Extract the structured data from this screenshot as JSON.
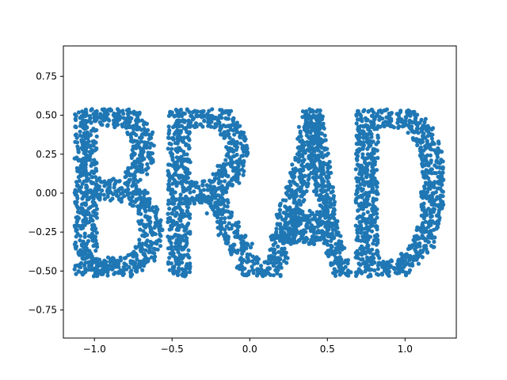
{
  "chart_data": {
    "type": "scatter",
    "title": "",
    "xlabel": "",
    "ylabel": "",
    "xlim": [
      -1.2,
      1.33
    ],
    "ylim": [
      -0.93,
      0.945
    ],
    "x_ticks": [
      {
        "value": -1.0,
        "label": "−1.0"
      },
      {
        "value": -0.5,
        "label": "−0.5"
      },
      {
        "value": 0.0,
        "label": "0.0"
      },
      {
        "value": 0.5,
        "label": "0.5"
      },
      {
        "value": 1.0,
        "label": "1.0"
      }
    ],
    "y_ticks": [
      {
        "value": -0.75,
        "label": "−0.75"
      },
      {
        "value": -0.5,
        "label": "−0.50"
      },
      {
        "value": -0.25,
        "label": "−0.25"
      },
      {
        "value": 0.0,
        "label": "0.00"
      },
      {
        "value": 0.25,
        "label": "0.25"
      },
      {
        "value": 0.5,
        "label": "0.50"
      },
      {
        "value": 0.75,
        "label": "0.75"
      }
    ],
    "grid": false,
    "legend": "none",
    "point_color": "#1f77b4",
    "series": [
      {
        "values_note_free": true,
        "points": [
          [
            -1.09,
            -0.52
          ],
          [
            -1.09,
            -0.45
          ],
          [
            -1.09,
            -0.38
          ],
          [
            -1.09,
            -0.31
          ],
          [
            -1.09,
            -0.24
          ],
          [
            -1.09,
            -0.17
          ],
          [
            -1.09,
            -0.1
          ],
          [
            -1.09,
            -0.03
          ],
          [
            -1.09,
            0.04
          ],
          [
            -1.09,
            0.11
          ],
          [
            -1.09,
            0.18
          ],
          [
            -1.09,
            0.25
          ],
          [
            -1.09,
            0.32
          ],
          [
            -1.09,
            0.39
          ],
          [
            -1.09,
            0.46
          ],
          [
            -1.09,
            0.53
          ],
          [
            -1.02,
            -0.52
          ],
          [
            -1.02,
            -0.45
          ],
          [
            -1.02,
            -0.38
          ],
          [
            -1.02,
            -0.31
          ],
          [
            -1.02,
            -0.24
          ],
          [
            -1.02,
            -0.17
          ],
          [
            -1.02,
            -0.1
          ],
          [
            -1.02,
            -0.03
          ],
          [
            -1.02,
            0.04
          ],
          [
            -1.02,
            0.11
          ],
          [
            -1.02,
            0.18
          ],
          [
            -1.02,
            0.25
          ],
          [
            -1.02,
            0.32
          ],
          [
            -1.02,
            0.39
          ],
          [
            -1.02,
            0.46
          ],
          [
            -1.02,
            0.53
          ],
          [
            -0.95,
            0.53
          ],
          [
            -0.88,
            0.53
          ],
          [
            -0.81,
            0.52
          ],
          [
            -0.74,
            0.49
          ],
          [
            -0.69,
            0.43
          ],
          [
            -0.66,
            0.36
          ],
          [
            -0.65,
            0.29
          ],
          [
            -0.66,
            0.22
          ],
          [
            -0.69,
            0.15
          ],
          [
            -0.74,
            0.09
          ],
          [
            -0.95,
            0.46
          ],
          [
            -0.88,
            0.46
          ],
          [
            -0.81,
            0.45
          ],
          [
            -0.76,
            0.4
          ],
          [
            -0.73,
            0.34
          ],
          [
            -0.72,
            0.27
          ],
          [
            -0.73,
            0.21
          ],
          [
            -0.77,
            0.14
          ],
          [
            -0.95,
            0.06
          ],
          [
            -0.88,
            0.06
          ],
          [
            -0.81,
            0.05
          ],
          [
            -0.95,
            -0.01
          ],
          [
            -0.88,
            -0.01
          ],
          [
            -0.81,
            -0.02
          ],
          [
            -0.74,
            0.02
          ],
          [
            -0.69,
            -0.02
          ],
          [
            -0.67,
            -0.07
          ],
          [
            -0.63,
            -0.12
          ],
          [
            -0.61,
            -0.19
          ],
          [
            -0.6,
            -0.26
          ],
          [
            -0.61,
            -0.33
          ],
          [
            -0.64,
            -0.4
          ],
          [
            -0.69,
            -0.46
          ],
          [
            -0.76,
            -0.5
          ],
          [
            -0.83,
            -0.52
          ],
          [
            -0.9,
            -0.52
          ],
          [
            -0.97,
            -0.52
          ],
          [
            -0.7,
            -0.1
          ],
          [
            -0.68,
            -0.17
          ],
          [
            -0.67,
            -0.24
          ],
          [
            -0.68,
            -0.31
          ],
          [
            -0.71,
            -0.37
          ],
          [
            -0.76,
            -0.42
          ],
          [
            -0.83,
            -0.45
          ],
          [
            -0.9,
            -0.45
          ],
          [
            -0.97,
            -0.45
          ],
          [
            -0.95,
            -0.52
          ],
          [
            -0.88,
            -0.45
          ],
          [
            -0.95,
            -0.45
          ],
          [
            -0.74,
            -0.06
          ],
          [
            -0.49,
            -0.52
          ],
          [
            -0.49,
            -0.45
          ],
          [
            -0.49,
            -0.38
          ],
          [
            -0.49,
            -0.31
          ],
          [
            -0.49,
            -0.24
          ],
          [
            -0.49,
            -0.17
          ],
          [
            -0.49,
            -0.1
          ],
          [
            -0.49,
            -0.03
          ],
          [
            -0.49,
            0.04
          ],
          [
            -0.49,
            0.11
          ],
          [
            -0.49,
            0.18
          ],
          [
            -0.49,
            0.25
          ],
          [
            -0.49,
            0.32
          ],
          [
            -0.49,
            0.39
          ],
          [
            -0.49,
            0.46
          ],
          [
            -0.49,
            0.53
          ],
          [
            -0.42,
            -0.52
          ],
          [
            -0.42,
            -0.45
          ],
          [
            -0.42,
            -0.38
          ],
          [
            -0.42,
            -0.31
          ],
          [
            -0.42,
            -0.24
          ],
          [
            -0.42,
            -0.17
          ],
          [
            -0.42,
            -0.1
          ],
          [
            -0.42,
            -0.03
          ],
          [
            -0.42,
            0.04
          ],
          [
            -0.42,
            0.11
          ],
          [
            -0.42,
            0.18
          ],
          [
            -0.42,
            0.25
          ],
          [
            -0.42,
            0.32
          ],
          [
            -0.42,
            0.39
          ],
          [
            -0.42,
            0.46
          ],
          [
            -0.42,
            0.53
          ],
          [
            -0.35,
            0.53
          ],
          [
            -0.28,
            0.53
          ],
          [
            -0.21,
            0.52
          ],
          [
            -0.14,
            0.49
          ],
          [
            -0.09,
            0.43
          ],
          [
            -0.06,
            0.36
          ],
          [
            -0.05,
            0.29
          ],
          [
            -0.05,
            0.22
          ],
          [
            -0.07,
            0.15
          ],
          [
            -0.1,
            0.09
          ],
          [
            -0.15,
            0.04
          ],
          [
            -0.21,
            0.01
          ],
          [
            -0.35,
            0.46
          ],
          [
            -0.28,
            0.46
          ],
          [
            -0.21,
            0.45
          ],
          [
            -0.16,
            0.4
          ],
          [
            -0.13,
            0.34
          ],
          [
            -0.12,
            0.27
          ],
          [
            -0.13,
            0.2
          ],
          [
            -0.17,
            0.14
          ],
          [
            -0.23,
            0.1
          ],
          [
            -0.35,
            0.04
          ],
          [
            -0.28,
            0.04
          ],
          [
            -0.35,
            -0.03
          ],
          [
            -0.28,
            -0.03
          ],
          [
            -0.21,
            -0.05
          ],
          [
            -0.24,
            -0.1
          ],
          [
            -0.21,
            -0.17
          ],
          [
            -0.17,
            -0.24
          ],
          [
            -0.13,
            -0.31
          ],
          [
            -0.09,
            -0.38
          ],
          [
            -0.05,
            -0.45
          ],
          [
            -0.01,
            -0.52
          ],
          [
            -0.17,
            -0.08
          ],
          [
            -0.14,
            -0.15
          ],
          [
            -0.1,
            -0.22
          ],
          [
            -0.06,
            -0.29
          ],
          [
            -0.02,
            -0.36
          ],
          [
            0.02,
            -0.43
          ],
          [
            0.05,
            -0.5
          ],
          [
            0.08,
            -0.52
          ],
          [
            0.11,
            -0.52
          ],
          [
            0.13,
            -0.45
          ],
          [
            0.15,
            -0.38
          ],
          [
            0.17,
            -0.31
          ],
          [
            0.19,
            -0.24
          ],
          [
            0.21,
            -0.17
          ],
          [
            0.23,
            -0.1
          ],
          [
            0.25,
            -0.03
          ],
          [
            0.27,
            0.04
          ],
          [
            0.29,
            0.11
          ],
          [
            0.31,
            0.18
          ],
          [
            0.33,
            0.25
          ],
          [
            0.34,
            0.32
          ],
          [
            0.35,
            0.39
          ],
          [
            0.36,
            0.46
          ],
          [
            0.38,
            0.53
          ],
          [
            0.18,
            -0.52
          ],
          [
            0.2,
            -0.45
          ],
          [
            0.22,
            -0.38
          ],
          [
            0.24,
            -0.31
          ],
          [
            0.26,
            -0.24
          ],
          [
            0.28,
            -0.17
          ],
          [
            0.3,
            -0.1
          ],
          [
            0.32,
            -0.03
          ],
          [
            0.34,
            0.04
          ],
          [
            0.36,
            0.11
          ],
          [
            0.38,
            0.18
          ],
          [
            0.4,
            0.25
          ],
          [
            0.41,
            0.32
          ],
          [
            0.42,
            0.39
          ],
          [
            0.42,
            0.46
          ],
          [
            0.42,
            0.53
          ],
          [
            0.44,
            0.46
          ],
          [
            0.45,
            0.39
          ],
          [
            0.46,
            0.32
          ],
          [
            0.47,
            0.25
          ],
          [
            0.48,
            0.18
          ],
          [
            0.49,
            0.11
          ],
          [
            0.5,
            0.04
          ],
          [
            0.51,
            -0.03
          ],
          [
            0.52,
            -0.1
          ],
          [
            0.53,
            -0.17
          ],
          [
            0.54,
            -0.24
          ],
          [
            0.56,
            -0.31
          ],
          [
            0.58,
            -0.38
          ],
          [
            0.6,
            -0.45
          ],
          [
            0.62,
            -0.52
          ],
          [
            0.39,
            0.46
          ],
          [
            0.4,
            0.39
          ],
          [
            0.41,
            0.32
          ],
          [
            0.43,
            0.18
          ],
          [
            0.44,
            0.11
          ],
          [
            0.45,
            0.04
          ],
          [
            0.46,
            -0.03
          ],
          [
            0.47,
            -0.1
          ],
          [
            0.48,
            -0.17
          ],
          [
            0.49,
            -0.24
          ],
          [
            0.51,
            -0.31
          ],
          [
            0.53,
            -0.38
          ],
          [
            0.55,
            -0.45
          ],
          [
            0.57,
            -0.52
          ],
          [
            0.24,
            -0.22
          ],
          [
            0.31,
            -0.22
          ],
          [
            0.38,
            -0.22
          ],
          [
            0.45,
            -0.22
          ],
          [
            0.24,
            -0.29
          ],
          [
            0.31,
            -0.29
          ],
          [
            0.38,
            -0.29
          ],
          [
            0.45,
            -0.29
          ],
          [
            0.3,
            -0.15
          ],
          [
            0.37,
            -0.15
          ],
          [
            0.43,
            -0.15
          ],
          [
            0.72,
            -0.52
          ],
          [
            0.72,
            -0.45
          ],
          [
            0.72,
            -0.38
          ],
          [
            0.72,
            -0.31
          ],
          [
            0.72,
            -0.24
          ],
          [
            0.72,
            -0.17
          ],
          [
            0.72,
            -0.1
          ],
          [
            0.72,
            -0.03
          ],
          [
            0.72,
            0.04
          ],
          [
            0.72,
            0.11
          ],
          [
            0.72,
            0.18
          ],
          [
            0.72,
            0.25
          ],
          [
            0.72,
            0.32
          ],
          [
            0.72,
            0.39
          ],
          [
            0.72,
            0.46
          ],
          [
            0.72,
            0.53
          ],
          [
            0.79,
            -0.52
          ],
          [
            0.79,
            -0.45
          ],
          [
            0.79,
            -0.38
          ],
          [
            0.79,
            -0.31
          ],
          [
            0.79,
            -0.24
          ],
          [
            0.79,
            -0.17
          ],
          [
            0.79,
            -0.1
          ],
          [
            0.79,
            -0.03
          ],
          [
            0.79,
            0.04
          ],
          [
            0.79,
            0.11
          ],
          [
            0.79,
            0.18
          ],
          [
            0.79,
            0.25
          ],
          [
            0.79,
            0.32
          ],
          [
            0.79,
            0.39
          ],
          [
            0.79,
            0.46
          ],
          [
            0.79,
            0.53
          ],
          [
            0.86,
            0.53
          ],
          [
            0.93,
            0.53
          ],
          [
            1.0,
            0.52
          ],
          [
            1.06,
            0.49
          ],
          [
            1.11,
            0.44
          ],
          [
            1.15,
            0.38
          ],
          [
            1.18,
            0.31
          ],
          [
            1.2,
            0.24
          ],
          [
            1.21,
            0.17
          ],
          [
            1.21,
            0.1
          ],
          [
            1.21,
            0.03
          ],
          [
            1.21,
            -0.04
          ],
          [
            1.21,
            -0.11
          ],
          [
            1.2,
            -0.18
          ],
          [
            1.18,
            -0.25
          ],
          [
            1.15,
            -0.32
          ],
          [
            1.11,
            -0.38
          ],
          [
            1.06,
            -0.44
          ],
          [
            1.0,
            -0.49
          ],
          [
            0.93,
            -0.52
          ],
          [
            0.86,
            -0.52
          ],
          [
            0.86,
            0.46
          ],
          [
            0.93,
            0.46
          ],
          [
            0.99,
            0.45
          ],
          [
            1.04,
            0.42
          ],
          [
            1.08,
            0.37
          ],
          [
            1.11,
            0.31
          ],
          [
            1.13,
            0.24
          ],
          [
            1.14,
            0.17
          ],
          [
            1.14,
            0.1
          ],
          [
            1.14,
            0.03
          ],
          [
            1.14,
            -0.04
          ],
          [
            1.14,
            -0.11
          ],
          [
            1.13,
            -0.18
          ],
          [
            1.11,
            -0.25
          ],
          [
            1.08,
            -0.31
          ],
          [
            1.04,
            -0.37
          ],
          [
            0.99,
            -0.42
          ],
          [
            0.93,
            -0.45
          ],
          [
            0.86,
            -0.45
          ]
        ]
      }
    ]
  }
}
